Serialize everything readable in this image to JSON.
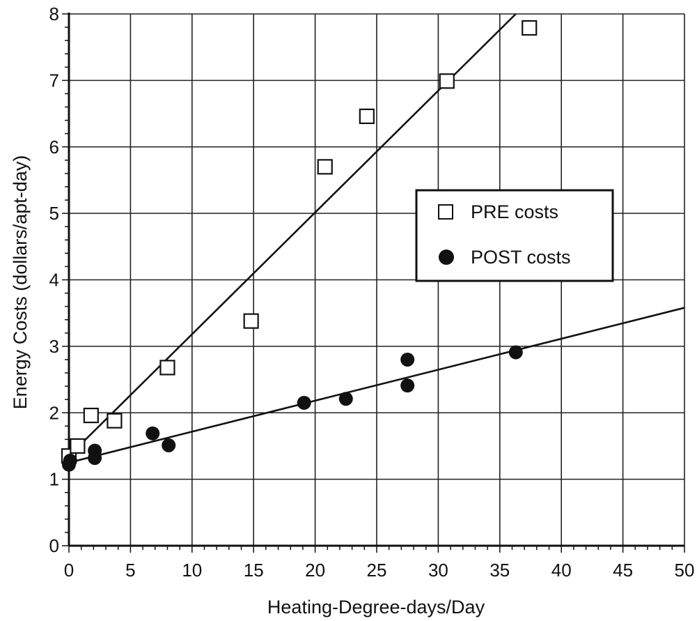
{
  "chart_data": {
    "type": "scatter",
    "xlabel": "Heating-Degree-days/Day",
    "ylabel": "Energy Costs (dollars/apt-day)",
    "xlim": [
      0,
      50
    ],
    "ylim": [
      0,
      8
    ],
    "x_ticks": [
      0,
      5,
      10,
      15,
      20,
      25,
      30,
      35,
      40,
      45,
      50
    ],
    "y_ticks": [
      0,
      1,
      2,
      3,
      4,
      5,
      6,
      7,
      8
    ],
    "grid": true,
    "legend_position": "right",
    "series": [
      {
        "name": "PRE costs",
        "marker": "open-square",
        "color": "#111111",
        "points": [
          {
            "x": 0.0,
            "y": 1.35
          },
          {
            "x": 0.7,
            "y": 1.5
          },
          {
            "x": 1.8,
            "y": 1.96
          },
          {
            "x": 3.7,
            "y": 1.88
          },
          {
            "x": 8.0,
            "y": 2.68
          },
          {
            "x": 14.8,
            "y": 3.38
          },
          {
            "x": 20.8,
            "y": 5.7
          },
          {
            "x": 24.2,
            "y": 6.46
          },
          {
            "x": 30.7,
            "y": 6.99
          },
          {
            "x": 37.4,
            "y": 7.79
          }
        ],
        "fit_line": {
          "x": [
            0,
            36.3
          ],
          "y": [
            1.35,
            8.0
          ]
        }
      },
      {
        "name": "POST costs",
        "marker": "filled-circle",
        "color": "#111111",
        "points": [
          {
            "x": 0.0,
            "y": 1.22
          },
          {
            "x": 0.1,
            "y": 1.28
          },
          {
            "x": 2.1,
            "y": 1.32
          },
          {
            "x": 2.1,
            "y": 1.43
          },
          {
            "x": 6.8,
            "y": 1.69
          },
          {
            "x": 8.1,
            "y": 1.51
          },
          {
            "x": 19.1,
            "y": 2.15
          },
          {
            "x": 22.5,
            "y": 2.21
          },
          {
            "x": 27.5,
            "y": 2.41
          },
          {
            "x": 27.5,
            "y": 2.8
          },
          {
            "x": 36.3,
            "y": 2.91
          }
        ],
        "fit_line": {
          "x": [
            0,
            50
          ],
          "y": [
            1.25,
            3.58
          ]
        }
      }
    ]
  }
}
